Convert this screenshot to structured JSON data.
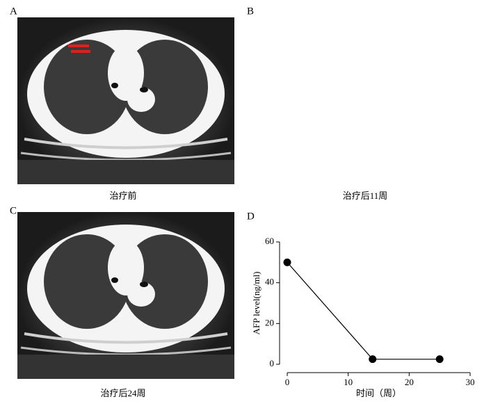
{
  "panels": [
    {
      "label": "A",
      "caption": "治疗前"
    },
    {
      "label": "B",
      "caption": "治疗后11周"
    },
    {
      "label": "C",
      "caption": "治疗后24周"
    }
  ],
  "chart_data": {
    "type": "line",
    "label": "D",
    "x": [
      0,
      14,
      25
    ],
    "values": [
      50,
      2.5,
      2.5
    ],
    "color": "#000000",
    "xlim": [
      0,
      30
    ],
    "xticks": [
      0,
      10,
      20,
      30
    ],
    "ylim": [
      0,
      60
    ],
    "yticks": [
      0,
      20,
      40,
      60
    ],
    "x_label": "时间（周）",
    "y_label": "AFP level(ng/ml)"
  }
}
